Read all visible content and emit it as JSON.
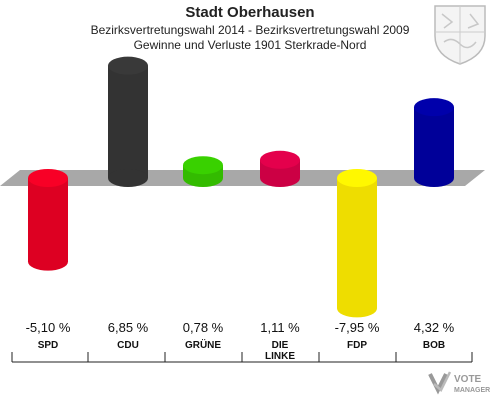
{
  "header": {
    "title": "Stadt Oberhausen",
    "subtitle": "Bezirksvertretungswahl 2014 - Bezirksvertretungswahl 2009",
    "subtitle2": "Gewinne und Verluste 1901 Sterkrade-Nord"
  },
  "chart_data": {
    "type": "bar",
    "categories": [
      "SPD",
      "CDU",
      "GRÜNE",
      "DIE LINKE",
      "FDP",
      "BOB"
    ],
    "values": [
      -5.1,
      6.85,
      0.78,
      1.11,
      -7.95,
      4.32
    ],
    "value_labels": [
      "-5,10 %",
      "6,85 %",
      "0,78 %",
      "1,11 %",
      "-7,95 %",
      "4,32 %"
    ],
    "colors": [
      "#dd0022",
      "#333333",
      "#33bb00",
      "#cc0044",
      "#eedd00",
      "#000099"
    ],
    "ylim": [
      -9,
      9
    ]
  },
  "logo": {
    "text": "VOTE MANAGER"
  },
  "icons": {
    "crest": "coat-of-arms-icon",
    "logo": "votemanager-logo-icon"
  }
}
